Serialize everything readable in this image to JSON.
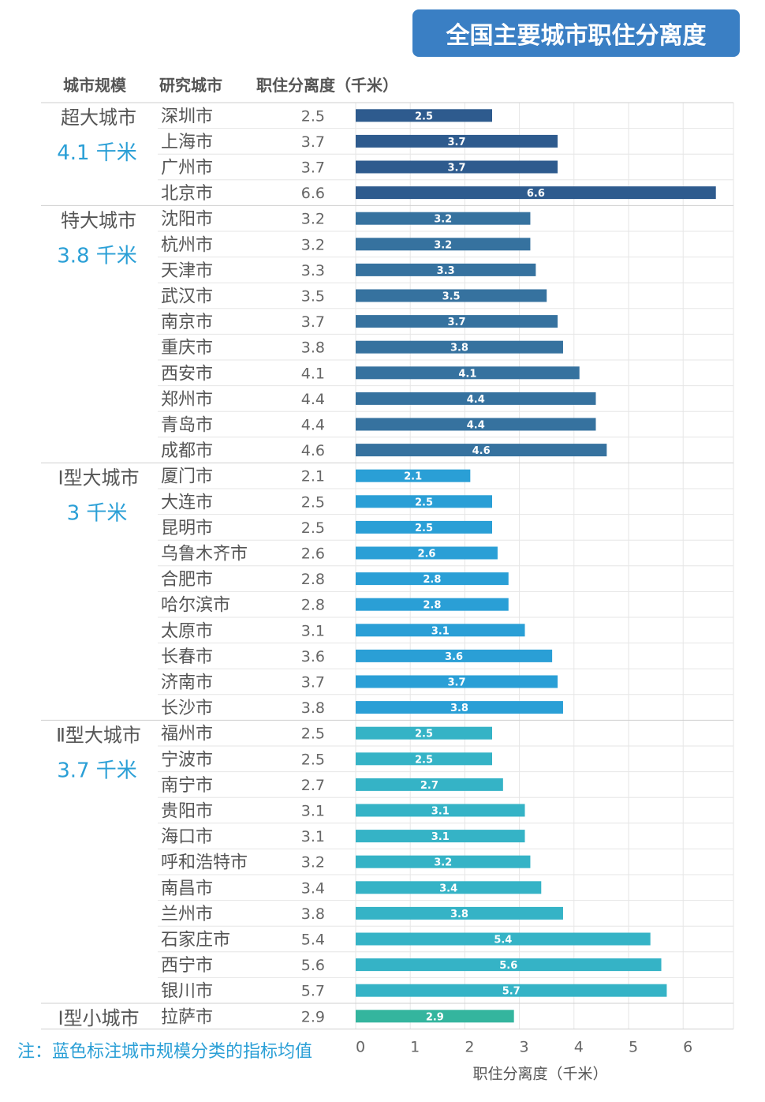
{
  "title": "全国主要城市职住分离度",
  "headers": {
    "scale": "城市规模",
    "city": "研究城市",
    "value": "职住分离度（千米）"
  },
  "note": "注：蓝色标注城市规模分类的指标均值",
  "groups": [
    {
      "name": "超大城市",
      "avg": "4.1 千米",
      "color": "#2e5b8e"
    },
    {
      "name": "特大城市",
      "avg": "3.8 千米",
      "color": "#36729f"
    },
    {
      "name": "Ⅰ型大城市",
      "avg": "3 千米",
      "color": "#2a9fd6"
    },
    {
      "name": "Ⅱ型大城市",
      "avg": "3.7 千米",
      "color": "#35b3c6"
    },
    {
      "name": "Ⅰ型小城市",
      "avg": "",
      "color": "#34b59e"
    }
  ],
  "chart_data": {
    "type": "bar",
    "orientation": "horizontal",
    "title": "全国主要城市职住分离度",
    "xlabel": "职住分离度（千米）",
    "xlim": [
      0,
      6.6
    ],
    "xticks": [
      0,
      1,
      2,
      3,
      4,
      5,
      6
    ],
    "grid": "vertical lines at ticks, horizontal row separators",
    "rows": [
      {
        "group": 0,
        "city": "深圳市",
        "value": 2.5
      },
      {
        "group": 0,
        "city": "上海市",
        "value": 3.7
      },
      {
        "group": 0,
        "city": "广州市",
        "value": 3.7
      },
      {
        "group": 0,
        "city": "北京市",
        "value": 6.6
      },
      {
        "group": 1,
        "city": "沈阳市",
        "value": 3.2
      },
      {
        "group": 1,
        "city": "杭州市",
        "value": 3.2
      },
      {
        "group": 1,
        "city": "天津市",
        "value": 3.3
      },
      {
        "group": 1,
        "city": "武汉市",
        "value": 3.5
      },
      {
        "group": 1,
        "city": "南京市",
        "value": 3.7
      },
      {
        "group": 1,
        "city": "重庆市",
        "value": 3.8
      },
      {
        "group": 1,
        "city": "西安市",
        "value": 4.1
      },
      {
        "group": 1,
        "city": "郑州市",
        "value": 4.4
      },
      {
        "group": 1,
        "city": "青岛市",
        "value": 4.4
      },
      {
        "group": 1,
        "city": "成都市",
        "value": 4.6
      },
      {
        "group": 2,
        "city": "厦门市",
        "value": 2.1
      },
      {
        "group": 2,
        "city": "大连市",
        "value": 2.5
      },
      {
        "group": 2,
        "city": "昆明市",
        "value": 2.5
      },
      {
        "group": 2,
        "city": "乌鲁木齐市",
        "value": 2.6
      },
      {
        "group": 2,
        "city": "合肥市",
        "value": 2.8
      },
      {
        "group": 2,
        "city": "哈尔滨市",
        "value": 2.8
      },
      {
        "group": 2,
        "city": "太原市",
        "value": 3.1
      },
      {
        "group": 2,
        "city": "长春市",
        "value": 3.6
      },
      {
        "group": 2,
        "city": "济南市",
        "value": 3.7
      },
      {
        "group": 2,
        "city": "长沙市",
        "value": 3.8
      },
      {
        "group": 3,
        "city": "福州市",
        "value": 2.5
      },
      {
        "group": 3,
        "city": "宁波市",
        "value": 2.5
      },
      {
        "group": 3,
        "city": "南宁市",
        "value": 2.7
      },
      {
        "group": 3,
        "city": "贵阳市",
        "value": 3.1
      },
      {
        "group": 3,
        "city": "海口市",
        "value": 3.1
      },
      {
        "group": 3,
        "city": "呼和浩特市",
        "value": 3.2
      },
      {
        "group": 3,
        "city": "南昌市",
        "value": 3.4
      },
      {
        "group": 3,
        "city": "兰州市",
        "value": 3.8
      },
      {
        "group": 3,
        "city": "石家庄市",
        "value": 5.4
      },
      {
        "group": 3,
        "city": "西宁市",
        "value": 5.6
      },
      {
        "group": 3,
        "city": "银川市",
        "value": 5.7
      },
      {
        "group": 4,
        "city": "拉萨市",
        "value": 2.9
      }
    ]
  }
}
